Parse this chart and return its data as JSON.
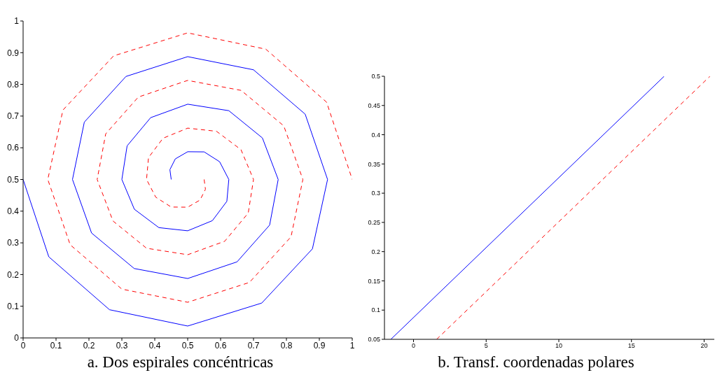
{
  "chart_data": [
    {
      "type": "line",
      "title": "a.  Dos espirales concéntricas",
      "xlim": [
        0,
        1
      ],
      "ylim": [
        0,
        1
      ],
      "xticks": [
        0,
        0.1,
        0.2,
        0.3,
        0.4,
        0.5,
        0.6,
        0.7,
        0.8,
        0.9,
        1
      ],
      "yticks": [
        0,
        0.1,
        0.2,
        0.3,
        0.4,
        0.5,
        0.6,
        0.7,
        0.8,
        0.9,
        1
      ],
      "series": [
        {
          "color": "#0000ff",
          "line_style": "solid",
          "x": [
            0.45,
            0.446,
            0.4625,
            0.5,
            0.55,
            0.597,
            0.625,
            0.619,
            0.575,
            0.5,
            0.4125,
            0.338,
            0.3,
            0.316,
            0.3875,
            0.5,
            0.625,
            0.727,
            0.775,
            0.749,
            0.65,
            0.5,
            0.3375,
            0.208,
            0.15,
            0.186,
            0.3125,
            0.5,
            0.7,
            0.857,
            0.925,
            0.879,
            0.725,
            0.5,
            0.2625,
            0.078,
            0
          ],
          "values": [
            0.5,
            0.531,
            0.565,
            0.5875,
            0.587,
            0.556,
            0.5,
            0.431,
            0.37,
            0.338,
            0.348,
            0.406,
            0.5,
            0.606,
            0.695,
            0.7375,
            0.717,
            0.631,
            0.5,
            0.356,
            0.24,
            0.1875,
            0.219,
            0.331,
            0.5,
            0.681,
            0.825,
            0.8875,
            0.846,
            0.706,
            0.5,
            0.281,
            0.11,
            0.0375,
            0.089,
            0.256,
            0.5
          ]
        },
        {
          "color": "#ff0000",
          "line_style": "dashed",
          "x": [
            0.55,
            0.554,
            0.5375,
            0.5,
            0.45,
            0.403,
            0.375,
            0.381,
            0.425,
            0.5,
            0.5875,
            0.662,
            0.7,
            0.684,
            0.6125,
            0.5,
            0.375,
            0.273,
            0.225,
            0.251,
            0.35,
            0.5,
            0.6625,
            0.792,
            0.85,
            0.814,
            0.6875,
            0.5,
            0.3,
            0.143,
            0.075,
            0.121,
            0.275,
            0.5,
            0.7375,
            0.922,
            1
          ],
          "values": [
            0.5,
            0.469,
            0.435,
            0.4125,
            0.413,
            0.444,
            0.5,
            0.569,
            0.63,
            0.662,
            0.652,
            0.594,
            0.5,
            0.394,
            0.305,
            0.2625,
            0.283,
            0.369,
            0.5,
            0.644,
            0.76,
            0.8125,
            0.781,
            0.669,
            0.5,
            0.319,
            0.175,
            0.1125,
            0.154,
            0.294,
            0.5,
            0.719,
            0.89,
            0.9625,
            0.911,
            0.744,
            0.5
          ]
        }
      ]
    },
    {
      "type": "line",
      "title": "b.  Transf. coordenadas polares",
      "xlim": [
        -2,
        20.7
      ],
      "ylim": [
        0.05,
        0.5
      ],
      "xticks": [
        0,
        5,
        10,
        15,
        20
      ],
      "yticks": [
        0.05,
        0.1,
        0.15,
        0.2,
        0.25,
        0.3,
        0.35,
        0.4,
        0.45,
        0.5
      ],
      "series": [
        {
          "color": "#0000ff",
          "line_style": "solid",
          "x": [
            -1.56,
            17.25
          ],
          "values": [
            0.05,
            0.5
          ]
        },
        {
          "color": "#ff0000",
          "line_style": "dashed",
          "x": [
            1.59,
            20.4
          ],
          "values": [
            0.05,
            0.5
          ]
        }
      ]
    }
  ]
}
